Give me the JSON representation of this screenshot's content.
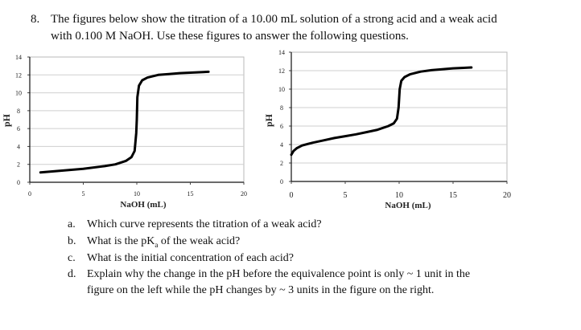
{
  "question": {
    "number": "8.",
    "line1": "The figures below show the titration of a 10.00 mL solution of a strong acid and a weak acid",
    "line2": "with 0.100 M NaOH. Use these figures to answer the following questions."
  },
  "chart_data": [
    {
      "type": "line",
      "xlabel": "NaOH (mL)",
      "ylabel": "pH",
      "xlim": [
        0,
        20
      ],
      "ylim": [
        0,
        14
      ],
      "xticks": [
        "0",
        "5",
        "10",
        "15",
        "20"
      ],
      "yticks": [
        "0",
        "2",
        "4",
        "6",
        "8",
        "10",
        "12",
        "14"
      ],
      "grid": true,
      "series": [
        {
          "x": [
            1,
            3,
            5,
            7,
            8,
            9,
            9.5,
            9.8,
            9.95,
            10,
            10.05,
            10.2,
            10.5,
            11,
            12,
            13,
            14,
            15,
            16,
            16.7
          ],
          "y": [
            1.1,
            1.3,
            1.5,
            1.8,
            2.0,
            2.4,
            2.8,
            3.5,
            5.5,
            7.0,
            9.5,
            10.8,
            11.4,
            11.7,
            12.0,
            12.1,
            12.2,
            12.25,
            12.3,
            12.35
          ]
        }
      ]
    },
    {
      "type": "line",
      "xlabel": "NaOH (mL)",
      "ylabel": "pH",
      "xlim": [
        0,
        20
      ],
      "ylim": [
        0,
        14
      ],
      "xticks": [
        "0",
        "5",
        "10",
        "15",
        "20"
      ],
      "yticks": [
        "0",
        "2",
        "4",
        "6",
        "8",
        "10",
        "12",
        "14"
      ],
      "grid": true,
      "series": [
        {
          "x": [
            0,
            0.2,
            0.5,
            1,
            2,
            3,
            4,
            5,
            6,
            7,
            8,
            9,
            9.5,
            9.8,
            9.95,
            10,
            10.05,
            10.2,
            10.5,
            11,
            12,
            13,
            14,
            15,
            16,
            16.7
          ],
          "y": [
            2.9,
            3.3,
            3.6,
            3.9,
            4.2,
            4.45,
            4.7,
            4.9,
            5.1,
            5.35,
            5.6,
            6.0,
            6.3,
            6.8,
            8.0,
            9.0,
            10.0,
            10.9,
            11.3,
            11.6,
            11.9,
            12.05,
            12.15,
            12.25,
            12.3,
            12.35
          ]
        }
      ]
    }
  ],
  "subquestions": [
    {
      "letter": "a.",
      "text": "Which curve represents the titration of a weak acid?"
    },
    {
      "letter": "b.",
      "text_before": "What is the pK",
      "subscript": "a",
      "text_after": " of the weak acid?"
    },
    {
      "letter": "c.",
      "text": "What is the initial concentration of each acid?"
    },
    {
      "letter": "d.",
      "text": "Explain why the change in the pH before the equivalence point is only ~ 1 unit in the",
      "continuation": "figure on the left while the pH changes by ~ 3 units in the figure on the right."
    }
  ]
}
